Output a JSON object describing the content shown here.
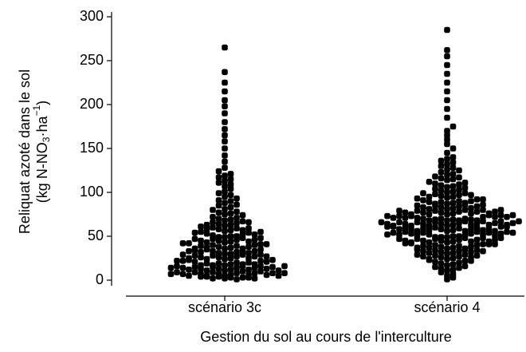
{
  "chart_data": {
    "type": "beeswarm",
    "ylabel": [
      "Reliquat azoté dans le sol",
      "(kg N-NO",
      "3",
      "·ha",
      "−1",
      ")"
    ],
    "xlabel": "Gestion du sol au cours de l'interculture",
    "categories": [
      "scénario 3c",
      "scénario 4"
    ],
    "color": "#000000",
    "ylim": [
      0,
      300
    ],
    "yticks": [
      0,
      50,
      100,
      150,
      200,
      250,
      300
    ],
    "values": [
      [
        2,
        3,
        4,
        5,
        6,
        7,
        8,
        9,
        10,
        1,
        2,
        3,
        4,
        5,
        6,
        7,
        8,
        9,
        10,
        3,
        4,
        5,
        6,
        7,
        8,
        9,
        2,
        5,
        7,
        8,
        11,
        12,
        13,
        14,
        15,
        16,
        17,
        18,
        19,
        20,
        11,
        12,
        13,
        14,
        15,
        16,
        17,
        18,
        19,
        20,
        12,
        13,
        14,
        15,
        16,
        17,
        18,
        11,
        14,
        16,
        21,
        22,
        23,
        24,
        25,
        26,
        27,
        28,
        29,
        30,
        21,
        22,
        23,
        24,
        25,
        26,
        27,
        28,
        29,
        30,
        22,
        25,
        27,
        29,
        31,
        32,
        33,
        34,
        35,
        36,
        37,
        38,
        39,
        40,
        31,
        32,
        33,
        34,
        35,
        36,
        37,
        38,
        39,
        40,
        33,
        36,
        41,
        42,
        43,
        44,
        45,
        46,
        47,
        48,
        49,
        50,
        41,
        42,
        43,
        44,
        45,
        46,
        47,
        48,
        49,
        50,
        51,
        52,
        53,
        54,
        55,
        56,
        57,
        58,
        59,
        60,
        52,
        54,
        55,
        57,
        58,
        59,
        61,
        62,
        63,
        64,
        65,
        66,
        67,
        68,
        69,
        70,
        63,
        66,
        71,
        72,
        74,
        75,
        76,
        77,
        78,
        80,
        81,
        83,
        85,
        86,
        88,
        90,
        91,
        93,
        95,
        97,
        99,
        101,
        104,
        107,
        109,
        111,
        113,
        115,
        117,
        119,
        121,
        124,
        128,
        135,
        142,
        150,
        158,
        165,
        172,
        180,
        190,
        198,
        205,
        215,
        225,
        237,
        265
      ],
      [
        1,
        3,
        5,
        7,
        9,
        11,
        12,
        13,
        14,
        15,
        16,
        17,
        18,
        19,
        20,
        21,
        22,
        23,
        24,
        25,
        26,
        27,
        28,
        29,
        30,
        22,
        24,
        26,
        27,
        28,
        29,
        31,
        32,
        33,
        34,
        35,
        36,
        37,
        38,
        39,
        40,
        31,
        32,
        33,
        34,
        35,
        36,
        37,
        38,
        39,
        40,
        33,
        37,
        41,
        42,
        43,
        44,
        45,
        46,
        47,
        48,
        49,
        50,
        41,
        42,
        43,
        44,
        45,
        46,
        47,
        48,
        49,
        50,
        41,
        43,
        44,
        45,
        46,
        47,
        48,
        49,
        51,
        52,
        53,
        54,
        55,
        56,
        57,
        58,
        59,
        60,
        51,
        52,
        53,
        54,
        55,
        56,
        57,
        58,
        59,
        60,
        51,
        52,
        53,
        54,
        55,
        56,
        57,
        58,
        59,
        60,
        52,
        54,
        56,
        58,
        61,
        62,
        63,
        64,
        65,
        66,
        67,
        68,
        69,
        70,
        61,
        62,
        63,
        64,
        65,
        66,
        67,
        68,
        69,
        70,
        61,
        62,
        63,
        64,
        65,
        66,
        67,
        68,
        69,
        70,
        61,
        62,
        63,
        64,
        65,
        66,
        67,
        68,
        71,
        72,
        73,
        74,
        75,
        76,
        77,
        78,
        79,
        80,
        71,
        72,
        73,
        74,
        75,
        76,
        77,
        78,
        79,
        80,
        71,
        72,
        73,
        74,
        75,
        76,
        77,
        78,
        79,
        80,
        81,
        82,
        83,
        84,
        85,
        86,
        87,
        88,
        89,
        90,
        81,
        82,
        83,
        84,
        85,
        86,
        87,
        88,
        89,
        90,
        91,
        92,
        93,
        94,
        95,
        96,
        97,
        98,
        99,
        100,
        92,
        95,
        97,
        99,
        101,
        102,
        103,
        104,
        105,
        106,
        107,
        108,
        109,
        110,
        111,
        112,
        114,
        115,
        116,
        117,
        118,
        120,
        121,
        123,
        125,
        126,
        128,
        130,
        132,
        134,
        136,
        138,
        140,
        145,
        150,
        155,
        160,
        165,
        170,
        175,
        185,
        195,
        205,
        215,
        225,
        235,
        245,
        255,
        262,
        285
      ]
    ]
  }
}
